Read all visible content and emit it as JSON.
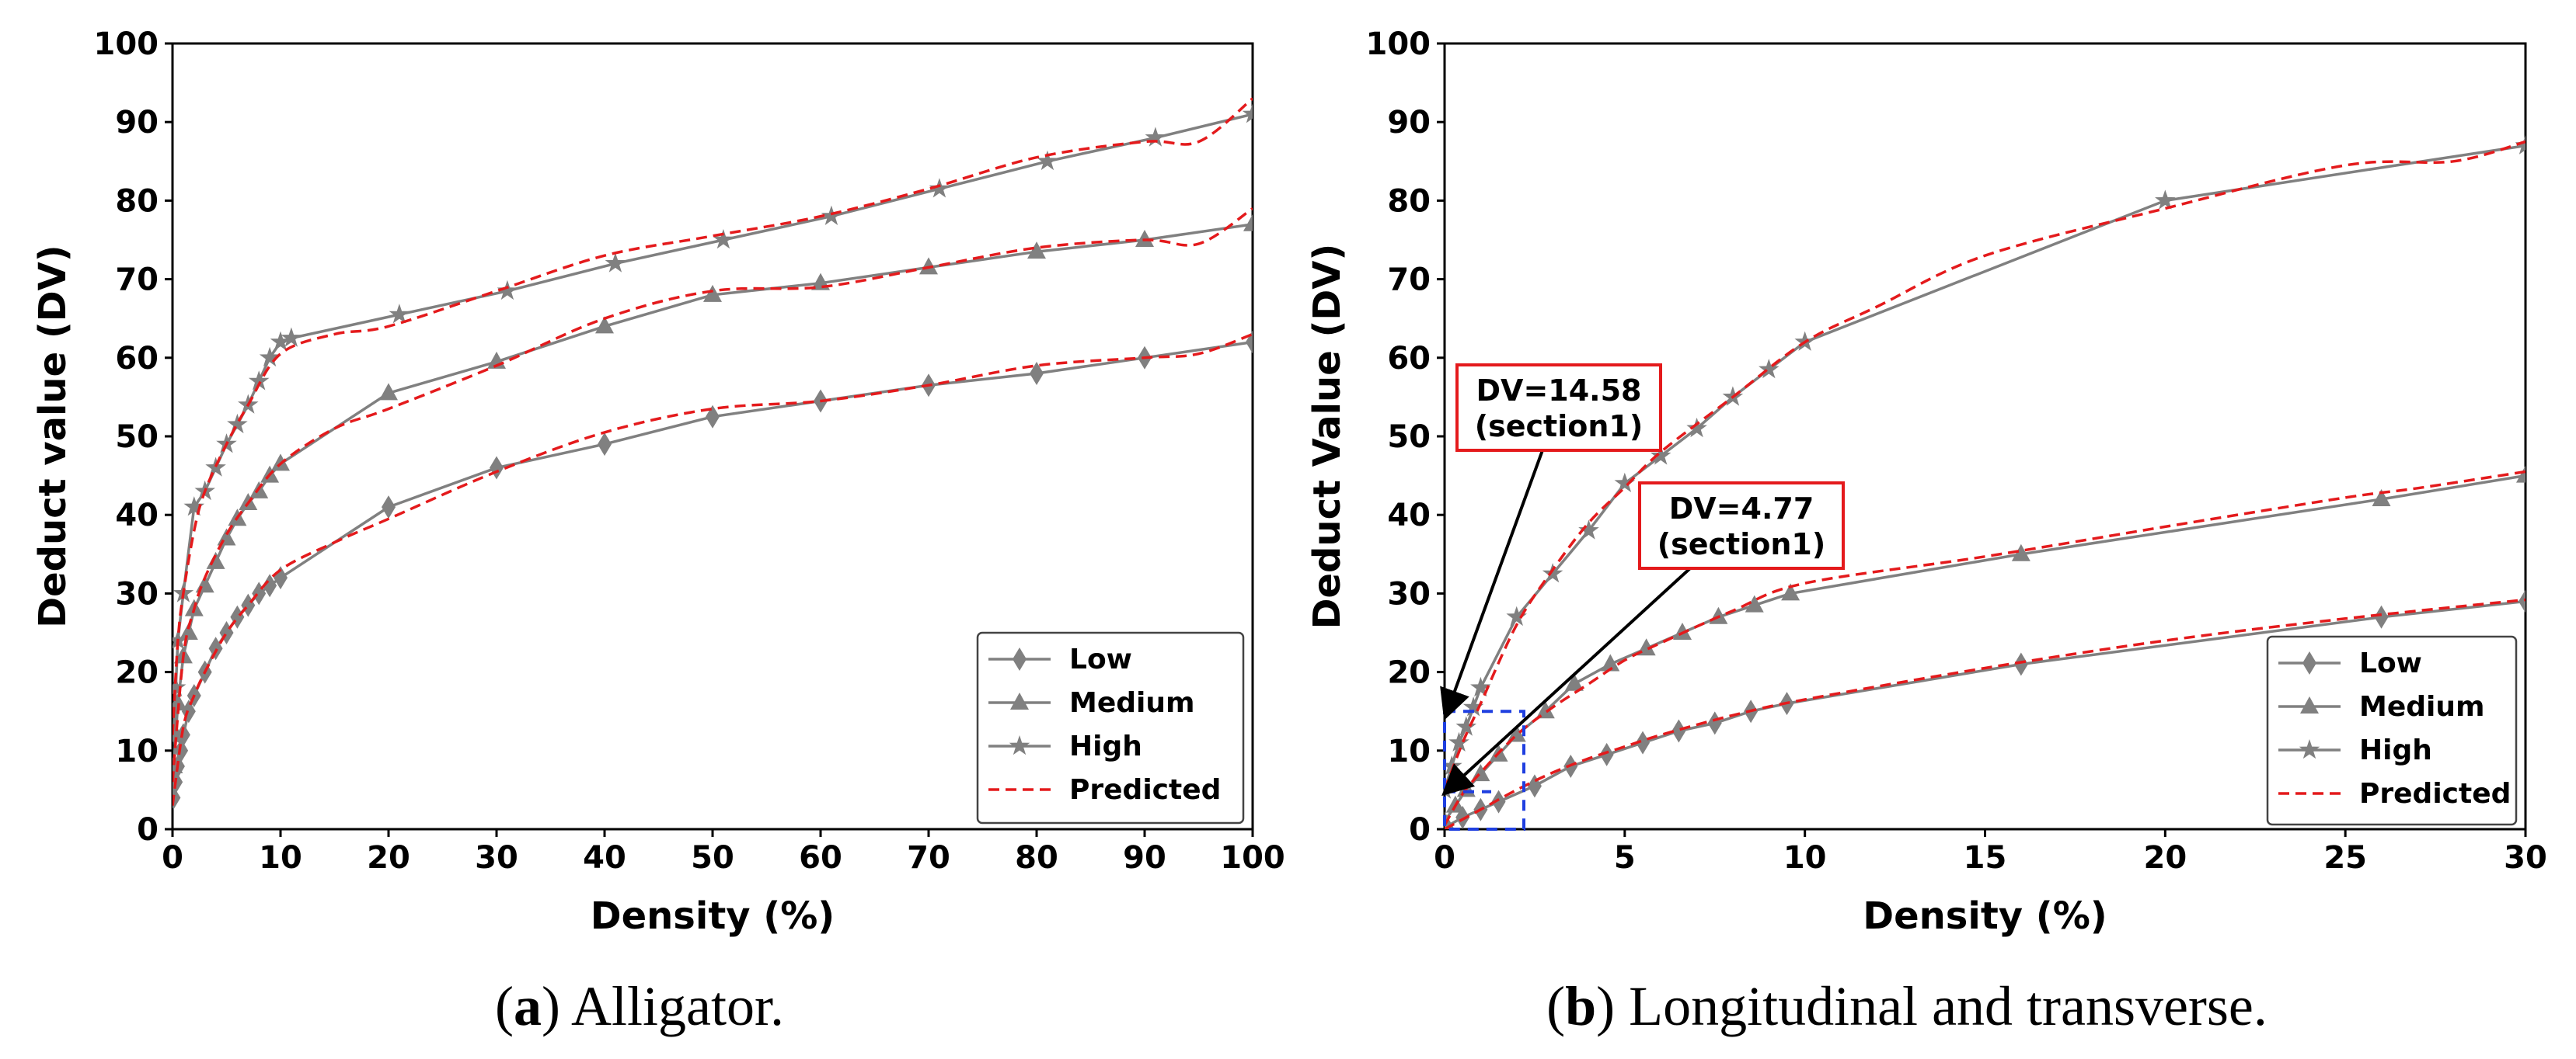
{
  "colors": {
    "measured": "#808080",
    "predicted": "#e41a1c",
    "zoom_box": "#1f3fe0",
    "annot_border": "#e41a1c"
  },
  "chart_data": [
    {
      "id": "a",
      "type": "line",
      "xlabel": "Density (%)",
      "ylabel": "Deduct value (DV)",
      "xlim": [
        0,
        100
      ],
      "ylim": [
        0,
        100
      ],
      "xticks": [
        0,
        10,
        20,
        30,
        40,
        50,
        60,
        70,
        80,
        90,
        100
      ],
      "yticks": [
        0,
        10,
        20,
        30,
        40,
        50,
        60,
        70,
        80,
        90,
        100
      ],
      "legend": {
        "position": "lower-right",
        "entries": [
          "Low",
          "Medium",
          "High",
          "Predicted"
        ]
      },
      "caption": {
        "letter": "a",
        "open": "(",
        "close": ")",
        "text": " Alligator."
      },
      "series": [
        {
          "name": "Low",
          "marker": "diamond",
          "x": [
            0.1,
            0.3,
            0.5,
            0.8,
            1,
            1.5,
            2,
            3,
            4,
            5,
            6,
            7,
            8,
            9,
            10,
            20,
            30,
            40,
            50,
            60,
            70,
            80,
            90,
            100
          ],
          "y": [
            4,
            6,
            8,
            10,
            12,
            15,
            17,
            20,
            23,
            25,
            27,
            28.5,
            30,
            31,
            32,
            41,
            46,
            49,
            52.5,
            54.5,
            56.5,
            58,
            60,
            62
          ]
        },
        {
          "name": "Medium",
          "marker": "triangle",
          "x": [
            0.1,
            0.3,
            0.5,
            1,
            1.5,
            2,
            3,
            4,
            5,
            6,
            7,
            8,
            9,
            10,
            20,
            30,
            40,
            50,
            60,
            70,
            80,
            90,
            100
          ],
          "y": [
            8,
            12,
            16,
            22,
            25,
            28,
            31,
            34,
            37,
            39.5,
            41.5,
            43,
            45,
            46.5,
            55.5,
            59.5,
            64,
            68,
            69.5,
            71.5,
            73.5,
            75,
            77
          ]
        },
        {
          "name": "High",
          "marker": "star",
          "x": [
            0.1,
            0.3,
            0.5,
            1,
            2,
            3,
            4,
            5,
            6,
            7,
            8,
            9,
            10,
            11,
            21,
            31,
            41,
            51,
            61,
            71,
            81,
            91,
            100
          ],
          "y": [
            12,
            18,
            24,
            30,
            41,
            43,
            46,
            49,
            51.5,
            54,
            57,
            60,
            62,
            62.5,
            65.5,
            68.5,
            72,
            75,
            78,
            81.5,
            85,
            88,
            91
          ]
        },
        {
          "name": "Predicted",
          "marker": "none",
          "dashed": true,
          "curves": [
            {
              "x": [
                0,
                1,
                2,
                3,
                5,
                7,
                10,
                15,
                20,
                30,
                40,
                50,
                60,
                70,
                80,
                90,
                95,
                100
              ],
              "y": [
                3,
                13,
                17,
                20,
                25,
                28.5,
                33,
                36.5,
                39.5,
                45.5,
                50.5,
                53.5,
                54.5,
                56.5,
                59,
                60,
                60.5,
                63
              ]
            },
            {
              "x": [
                0,
                1,
                2,
                3,
                5,
                7,
                10,
                15,
                20,
                30,
                40,
                50,
                60,
                70,
                80,
                90,
                95,
                100
              ],
              "y": [
                6,
                22,
                28,
                32,
                37.5,
                41.5,
                46.5,
                51,
                53.5,
                59,
                65,
                68.5,
                69,
                71.5,
                74,
                75,
                74.5,
                79
              ]
            },
            {
              "x": [
                0,
                0.5,
                1,
                2,
                3,
                5,
                7,
                10,
                15,
                20,
                30,
                40,
                50,
                60,
                70,
                80,
                90,
                95,
                100
              ],
              "y": [
                12,
                24,
                30,
                38,
                43,
                49,
                54,
                60.5,
                63,
                64,
                68.5,
                73,
                75.5,
                78,
                81.5,
                85.5,
                87.5,
                87.5,
                93
              ]
            }
          ]
        }
      ]
    },
    {
      "id": "b",
      "type": "line",
      "xlabel": "Density (%)",
      "ylabel": "Deduct Value (DV)",
      "xlim": [
        0,
        30
      ],
      "ylim": [
        0,
        100
      ],
      "xticks": [
        0,
        5,
        10,
        15,
        20,
        25,
        30
      ],
      "yticks": [
        0,
        10,
        20,
        30,
        40,
        50,
        60,
        70,
        80,
        90,
        100
      ],
      "legend": {
        "position": "lower-right",
        "entries": [
          "Low",
          "Medium",
          "High",
          "Predicted"
        ]
      },
      "caption": {
        "letter": "b",
        "open": "(",
        "close": ")",
        "text": " Longitudinal and transverse."
      },
      "annotations": [
        {
          "line1": "DV=14.58",
          "line2": "(section1)",
          "arrow_to": [
            0,
            14.58
          ]
        },
        {
          "line1": "DV=4.77",
          "line2": "(section1)",
          "arrow_to": [
            0,
            4.77
          ]
        }
      ],
      "zoom_box": {
        "x": [
          0,
          2.2
        ],
        "y": [
          0,
          15
        ]
      },
      "series": [
        {
          "name": "Low",
          "marker": "diamond",
          "x": [
            0,
            0.5,
            1,
            1.5,
            2.5,
            3.5,
            4.5,
            5.5,
            6.5,
            7.5,
            8.5,
            9.5,
            16,
            26,
            30
          ],
          "y": [
            0.2,
            1.5,
            2.5,
            3.5,
            5.5,
            8,
            9.5,
            11,
            12.5,
            13.5,
            15,
            16,
            21,
            27,
            29
          ]
        },
        {
          "name": "Medium",
          "marker": "triangle",
          "x": [
            0,
            0.3,
            0.6,
            1,
            1.5,
            2,
            2.8,
            3.6,
            4.6,
            5.6,
            6.6,
            7.6,
            8.6,
            9.6,
            16,
            26,
            30
          ],
          "y": [
            1,
            3,
            5,
            7,
            9.5,
            12,
            15,
            18.5,
            21,
            23,
            25,
            27,
            28.5,
            30,
            35,
            42,
            45
          ]
        },
        {
          "name": "High",
          "marker": "star",
          "x": [
            0,
            0.2,
            0.4,
            0.6,
            0.8,
            1,
            2,
            3,
            4,
            5,
            6,
            7,
            8,
            9,
            10,
            20,
            30
          ],
          "y": [
            5,
            8,
            11,
            13,
            15.5,
            18,
            27,
            32.5,
            38,
            44,
            47.5,
            51,
            55,
            58.5,
            62,
            80,
            87
          ]
        },
        {
          "name": "Predicted",
          "marker": "none",
          "dashed": true,
          "curves": [
            {
              "x": [
                0,
                1,
                2,
                3,
                4,
                5,
                6,
                8,
                10,
                15,
                20,
                25,
                30
              ],
              "y": [
                0,
                2.5,
                5,
                7.2,
                9,
                10.5,
                12,
                14.5,
                16.5,
                20.5,
                24,
                26.8,
                29.2
              ]
            },
            {
              "x": [
                0,
                0.5,
                1,
                2,
                3,
                4,
                5,
                6,
                8,
                10,
                15,
                20,
                25,
                27,
                30
              ],
              "y": [
                0.5,
                4.5,
                7.2,
                12,
                15.5,
                18.5,
                21.5,
                23.7,
                27.8,
                31.3,
                34.7,
                38.5,
                42.2,
                43.4,
                45.5
              ]
            },
            {
              "x": [
                0,
                0.5,
                1,
                2,
                3,
                4,
                5,
                6,
                8,
                10,
                12,
                15,
                20,
                25,
                28,
                30
              ],
              "y": [
                5,
                11,
                16,
                26,
                33,
                39,
                43.5,
                48,
                55,
                62,
                66.5,
                73,
                79,
                84.5,
                85,
                87.5
              ]
            }
          ]
        }
      ]
    }
  ]
}
